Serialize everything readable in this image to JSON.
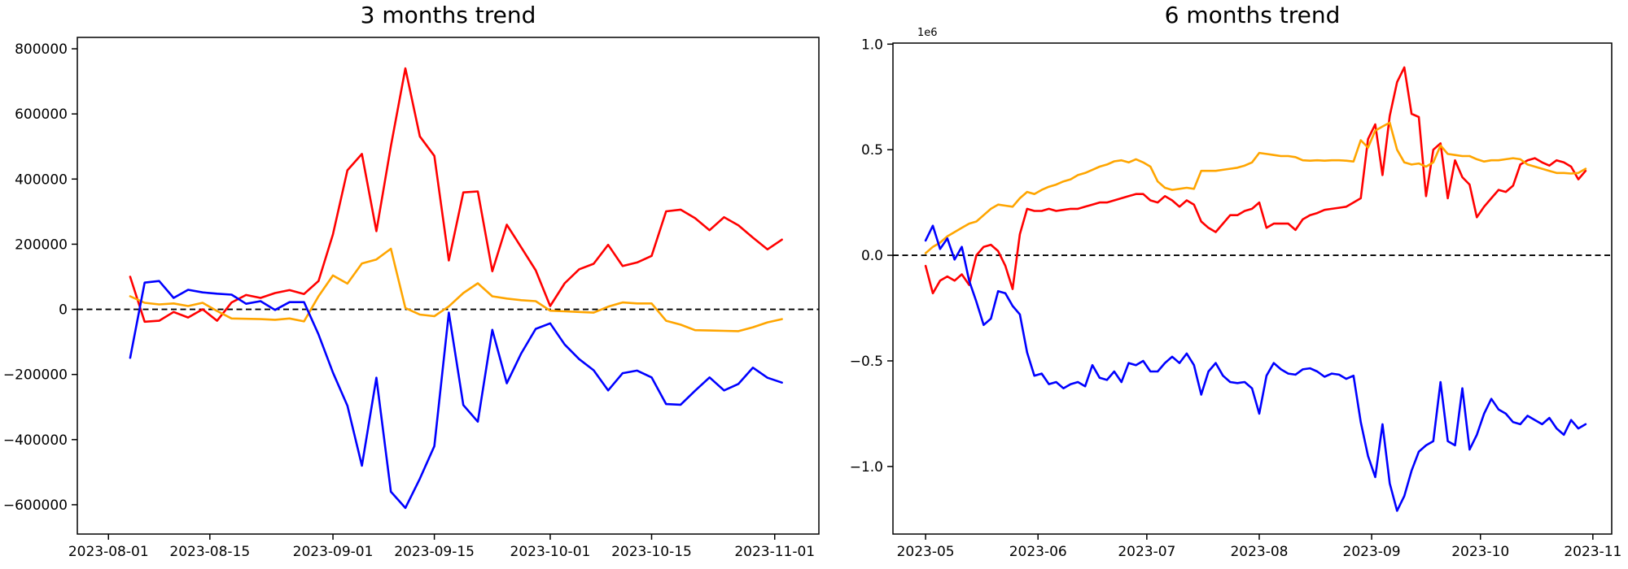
{
  "figure": {
    "background": "#ffffff",
    "series_colors": {
      "red": "#ff0000",
      "orange": "#ffa500",
      "blue": "#0000ff"
    },
    "zero_line_color": "#000000"
  },
  "chart_data": [
    {
      "type": "line",
      "title": "3 months trend",
      "legend": null,
      "grid": false,
      "zero_line": true,
      "xlim_days": [
        -4.3,
        98.1
      ],
      "ylim": [
        -690000,
        835000
      ],
      "y_ticks": [
        800000,
        600000,
        400000,
        200000,
        0,
        -200000,
        -400000,
        -600000
      ],
      "y_tick_labels": [
        "800000",
        "600000",
        "400000",
        "200000",
        "0",
        "−200000",
        "−400000",
        "−600000"
      ],
      "x_tick_days": [
        0,
        14,
        31,
        45,
        61,
        75,
        92
      ],
      "x_tick_labels": [
        "2023-08-01",
        "2023-08-15",
        "2023-09-01",
        "2023-09-15",
        "2023-10-01",
        "2023-10-15",
        "2023-11-01"
      ],
      "data_start_day": 3,
      "day_step": 2,
      "dates": [
        "2023-08-04",
        "2023-08-06",
        "2023-08-08",
        "2023-08-10",
        "2023-08-12",
        "2023-08-14",
        "2023-08-16",
        "2023-08-18",
        "2023-08-20",
        "2023-08-22",
        "2023-08-24",
        "2023-08-26",
        "2023-08-28",
        "2023-08-30",
        "2023-09-01",
        "2023-09-03",
        "2023-09-05",
        "2023-09-07",
        "2023-09-09",
        "2023-09-11",
        "2023-09-13",
        "2023-09-15",
        "2023-09-17",
        "2023-09-19",
        "2023-09-21",
        "2023-09-23",
        "2023-09-25",
        "2023-09-27",
        "2023-09-29",
        "2023-10-01",
        "2023-10-03",
        "2023-10-05",
        "2023-10-07",
        "2023-10-09",
        "2023-10-11",
        "2023-10-13",
        "2023-10-15",
        "2023-10-17",
        "2023-10-19",
        "2023-10-21",
        "2023-10-23",
        "2023-10-25",
        "2023-10-27",
        "2023-10-29",
        "2023-10-31",
        "2023-11-02"
      ],
      "series": [
        {
          "name": "red",
          "color": "#ff0000",
          "values": [
            100000,
            -38000,
            -35000,
            -8000,
            -25000,
            0,
            -35000,
            21000,
            44000,
            35000,
            50000,
            59000,
            47000,
            87000,
            230000,
            427000,
            477000,
            240000,
            501000,
            740000,
            531000,
            471000,
            150000,
            359000,
            362000,
            117000,
            260000,
            190000,
            120000,
            10000,
            80000,
            123000,
            140000,
            198000,
            133000,
            144000,
            164000,
            301000,
            306000,
            280000,
            243000,
            283000,
            258000,
            220000,
            184000,
            214000
          ]
        },
        {
          "name": "orange",
          "color": "#ffa500",
          "values": [
            40000,
            20000,
            15000,
            18000,
            10000,
            20000,
            -5000,
            -28000,
            -29000,
            -30000,
            -32000,
            -28000,
            -37000,
            40000,
            104000,
            79000,
            141000,
            153000,
            186000,
            4000,
            -16000,
            -21000,
            9000,
            50000,
            80000,
            40000,
            33000,
            28000,
            25000,
            -4000,
            -6000,
            -8000,
            -10000,
            8000,
            21000,
            18000,
            18000,
            -35000,
            -47000,
            -64000,
            -65000,
            -66000,
            -67000,
            -55000,
            -40000,
            -30000
          ]
        },
        {
          "name": "blue",
          "color": "#0000ff",
          "values": [
            -149000,
            82000,
            87000,
            35000,
            60000,
            52000,
            48000,
            45000,
            17000,
            25000,
            -2000,
            22000,
            22000,
            -77000,
            -194000,
            -296000,
            -480000,
            -210000,
            -560000,
            -610000,
            -520000,
            -420000,
            -10000,
            -294000,
            -345000,
            -63000,
            -227000,
            -135000,
            -60000,
            -43000,
            -108000,
            -153000,
            -187000,
            -249000,
            -196000,
            -188000,
            -209000,
            -291000,
            -293000,
            -250000,
            -209000,
            -249000,
            -229000,
            -179000,
            -210000,
            -225000
          ]
        }
      ]
    },
    {
      "type": "line",
      "title": "6 months trend",
      "legend": null,
      "grid": false,
      "zero_line": true,
      "y_offset_label": "1e6",
      "xlim_days": [
        -9,
        189.2
      ],
      "ylim": [
        -1320000,
        1005000
      ],
      "y_ticks": [
        1000000,
        500000,
        0,
        -500000,
        -1000000
      ],
      "y_tick_labels": [
        "1.0",
        "0.5",
        "0.0",
        "−0.5",
        "−1.0"
      ],
      "x_tick_days": [
        0,
        31,
        61,
        92,
        123,
        153,
        184
      ],
      "x_tick_labels": [
        "2023-05",
        "2023-06",
        "2023-07",
        "2023-08",
        "2023-09",
        "2023-10",
        "2023-11"
      ],
      "data_start_day": 0,
      "day_step": 2,
      "dates": [
        "2023-05-01",
        "2023-05-03",
        "2023-05-05",
        "2023-05-07",
        "2023-05-09",
        "2023-05-11",
        "2023-05-13",
        "2023-05-15",
        "2023-05-17",
        "2023-05-19",
        "2023-05-21",
        "2023-05-23",
        "2023-05-25",
        "2023-05-27",
        "2023-05-29",
        "2023-05-31",
        "2023-06-02",
        "2023-06-04",
        "2023-06-06",
        "2023-06-08",
        "2023-06-10",
        "2023-06-12",
        "2023-06-14",
        "2023-06-16",
        "2023-06-18",
        "2023-06-20",
        "2023-06-22",
        "2023-06-24",
        "2023-06-26",
        "2023-06-28",
        "2023-06-30",
        "2023-07-02",
        "2023-07-04",
        "2023-07-06",
        "2023-07-08",
        "2023-07-10",
        "2023-07-12",
        "2023-07-14",
        "2023-07-16",
        "2023-07-18",
        "2023-07-20",
        "2023-07-22",
        "2023-07-24",
        "2023-07-26",
        "2023-07-28",
        "2023-07-30",
        "2023-08-01",
        "2023-08-03",
        "2023-08-05",
        "2023-08-07",
        "2023-08-09",
        "2023-08-11",
        "2023-08-13",
        "2023-08-15",
        "2023-08-17",
        "2023-08-19",
        "2023-08-21",
        "2023-08-23",
        "2023-08-25",
        "2023-08-27",
        "2023-08-29",
        "2023-08-31",
        "2023-09-02",
        "2023-09-04",
        "2023-09-06",
        "2023-09-08",
        "2023-09-10",
        "2023-09-12",
        "2023-09-14",
        "2023-09-16",
        "2023-09-18",
        "2023-09-20",
        "2023-09-22",
        "2023-09-24",
        "2023-09-26",
        "2023-09-28",
        "2023-09-30",
        "2023-10-02",
        "2023-10-04",
        "2023-10-06",
        "2023-10-08",
        "2023-10-10",
        "2023-10-12",
        "2023-10-14",
        "2023-10-16",
        "2023-10-18",
        "2023-10-20",
        "2023-10-22",
        "2023-10-24",
        "2023-10-26",
        "2023-10-28",
        "2023-10-30"
      ],
      "series": [
        {
          "name": "red",
          "color": "#ff0000",
          "values": [
            -50000,
            -180000,
            -120000,
            -100000,
            -120000,
            -90000,
            -140000,
            0,
            40000,
            50000,
            20000,
            -50000,
            -160000,
            100000,
            220000,
            210000,
            210000,
            220000,
            210000,
            215000,
            220000,
            220000,
            230000,
            240000,
            250000,
            250000,
            260000,
            270000,
            280000,
            290000,
            290000,
            260000,
            250000,
            280000,
            260000,
            230000,
            260000,
            240000,
            160000,
            130000,
            110000,
            150000,
            190000,
            190000,
            210000,
            220000,
            250000,
            130000,
            150000,
            150000,
            150000,
            120000,
            170000,
            190000,
            200000,
            215000,
            220000,
            225000,
            230000,
            250000,
            270000,
            550000,
            620000,
            380000,
            660000,
            820000,
            890000,
            670000,
            655000,
            280000,
            500000,
            530000,
            270000,
            450000,
            370000,
            335000,
            180000,
            230000,
            270000,
            310000,
            300000,
            330000,
            430000,
            450000,
            460000,
            440000,
            425000,
            450000,
            440000,
            420000,
            360000,
            400000
          ]
        },
        {
          "name": "orange",
          "color": "#ffa500",
          "values": [
            10000,
            40000,
            60000,
            90000,
            110000,
            130000,
            150000,
            160000,
            190000,
            220000,
            240000,
            235000,
            230000,
            270000,
            300000,
            290000,
            310000,
            325000,
            335000,
            350000,
            360000,
            380000,
            390000,
            405000,
            420000,
            430000,
            445000,
            450000,
            440000,
            455000,
            440000,
            420000,
            350000,
            320000,
            310000,
            315000,
            320000,
            315000,
            400000,
            400000,
            400000,
            405000,
            410000,
            415000,
            425000,
            440000,
            485000,
            480000,
            475000,
            470000,
            470000,
            465000,
            450000,
            448000,
            450000,
            448000,
            450000,
            450000,
            448000,
            444000,
            545000,
            510000,
            590000,
            610000,
            628000,
            500000,
            440000,
            430000,
            435000,
            420000,
            440000,
            520000,
            480000,
            475000,
            470000,
            470000,
            455000,
            444000,
            450000,
            450000,
            455000,
            460000,
            455000,
            430000,
            420000,
            410000,
            400000,
            390000,
            390000,
            387000,
            390000,
            410000
          ]
        },
        {
          "name": "blue",
          "color": "#0000ff",
          "values": [
            70000,
            140000,
            30000,
            80000,
            -20000,
            40000,
            -120000,
            -220000,
            -330000,
            -300000,
            -170000,
            -180000,
            -240000,
            -280000,
            -460000,
            -570000,
            -560000,
            -610000,
            -600000,
            -630000,
            -610000,
            -600000,
            -620000,
            -520000,
            -580000,
            -590000,
            -550000,
            -600000,
            -510000,
            -520000,
            -500000,
            -550000,
            -550000,
            -510000,
            -480000,
            -510000,
            -465000,
            -520000,
            -660000,
            -550000,
            -510000,
            -570000,
            -600000,
            -605000,
            -600000,
            -630000,
            -750000,
            -570000,
            -510000,
            -540000,
            -560000,
            -565000,
            -540000,
            -535000,
            -550000,
            -575000,
            -560000,
            -565000,
            -585000,
            -570000,
            -790000,
            -950000,
            -1050000,
            -800000,
            -1080000,
            -1210000,
            -1140000,
            -1020000,
            -930000,
            -900000,
            -880000,
            -600000,
            -880000,
            -900000,
            -630000,
            -920000,
            -850000,
            -750000,
            -680000,
            -730000,
            -750000,
            -790000,
            -800000,
            -760000,
            -780000,
            -800000,
            -770000,
            -820000,
            -850000,
            -780000,
            -820000,
            -800000
          ]
        }
      ]
    }
  ]
}
